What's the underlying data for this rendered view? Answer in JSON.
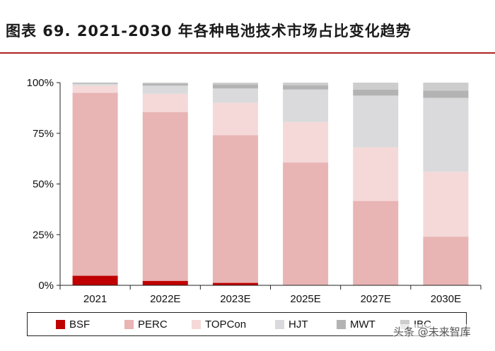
{
  "title": "图表 69. 2021-2030 年各种电池技术市场占比变化趋势",
  "watermark": "头条 @未来智库",
  "chart_data": {
    "type": "bar",
    "stacked": true,
    "categories": [
      "2021",
      "2022E",
      "2023E",
      "2025E",
      "2027E",
      "2030E"
    ],
    "series": [
      {
        "name": "BSF",
        "color": "#c00000",
        "values": [
          4.7,
          2.2,
          1.2,
          0,
          0,
          0
        ]
      },
      {
        "name": "PERC",
        "color": "#e8b4b4",
        "values": [
          90.3,
          83.3,
          72.9,
          60.6,
          41.6,
          24.0
        ]
      },
      {
        "name": "TOPCon",
        "color": "#f5d9d9",
        "values": [
          3.5,
          9.0,
          16.0,
          20.0,
          26.5,
          32.0
        ]
      },
      {
        "name": "HJT",
        "color": "#dadadc",
        "values": [
          1.0,
          4.0,
          7.0,
          16.0,
          25.5,
          36.5
        ]
      },
      {
        "name": "MWT",
        "color": "#b3b3b3",
        "values": [
          0.5,
          1.0,
          2.0,
          2.0,
          3.0,
          3.5
        ]
      },
      {
        "name": "IBC",
        "color": "#cdcdcd",
        "values": [
          0,
          0.5,
          0.9,
          1.4,
          3.4,
          4.0
        ]
      }
    ],
    "yticks": [
      "0%",
      "25%",
      "50%",
      "75%",
      "100%"
    ],
    "ylim": [
      0,
      100
    ],
    "xlabel": "",
    "ylabel": "",
    "legend": "bottom"
  }
}
